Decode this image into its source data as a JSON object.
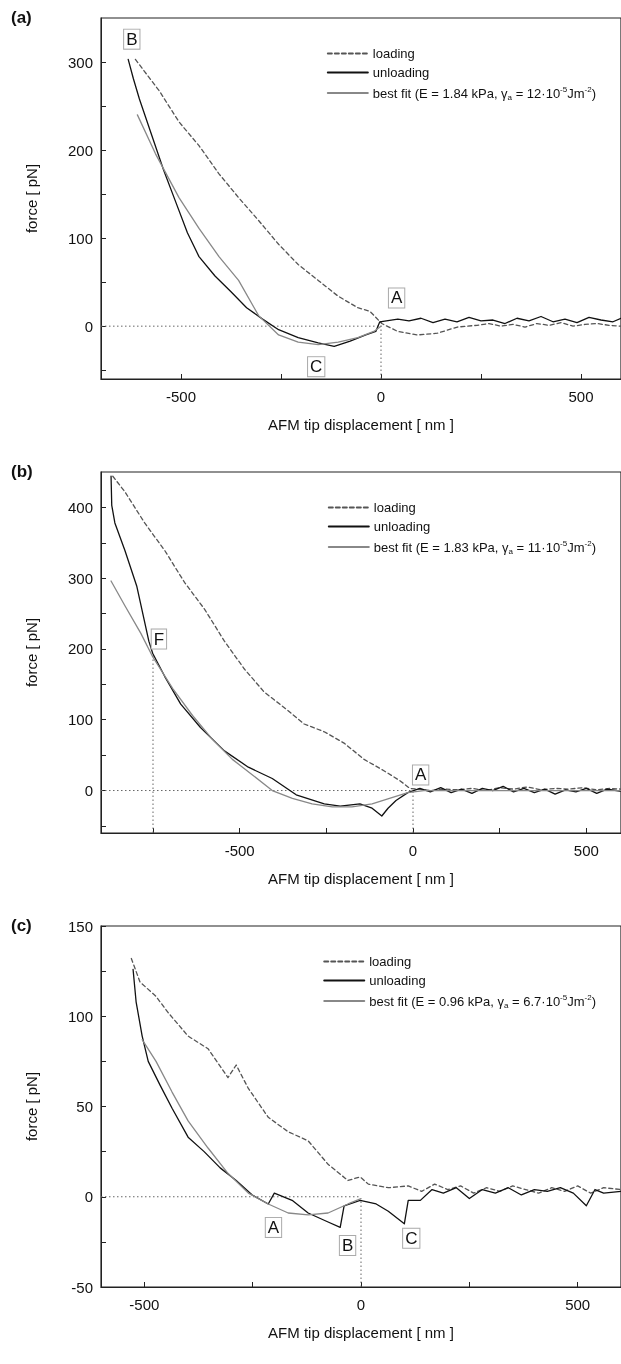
{
  "chart_data": [
    {
      "type": "line",
      "title": "(a)",
      "xlabel": "AFM tip displacement [ nm ]",
      "ylabel": "force [ pN]",
      "xlim": [
        -700,
        600
      ],
      "ylim": [
        -60,
        350
      ],
      "xticks": [
        -500,
        {
          "value": -250,
          "label": null
        },
        0,
        {
          "value": 250,
          "label": null
        },
        500
      ],
      "yticks": [
        {
          "value": -50,
          "label": null
        },
        0,
        {
          "value": 50,
          "label": null
        },
        100,
        {
          "value": 150,
          "label": null
        },
        200,
        {
          "value": 250,
          "label": null
        },
        300
      ],
      "legend": "top right",
      "marker": "none",
      "grid": false,
      "series": [
        {
          "name": "loading",
          "color": "#555555",
          "line_style": "dashed",
          "x": [
            -614,
            -554,
            -505,
            -455,
            -405,
            -356,
            -306,
            -256,
            -207,
            -157,
            -107,
            -58,
            -28,
            2,
            42,
            91,
            141,
            191,
            240,
            270,
            300,
            330,
            360,
            390,
            420,
            450,
            480,
            510,
            540,
            570,
            600
          ],
          "values": [
            303,
            267,
            232,
            205,
            173,
            146,
            120,
            93,
            70,
            52,
            34,
            21,
            17,
            3,
            -6,
            -10,
            -8,
            -1,
            1,
            3,
            0,
            2,
            -1,
            3,
            1,
            4,
            0,
            2,
            3,
            1,
            0
          ]
        },
        {
          "name": "unloading",
          "color": "#111111",
          "x": [
            -632,
            -619,
            -604,
            -574,
            -544,
            -514,
            -484,
            -455,
            -415,
            -375,
            -336,
            -296,
            -256,
            -207,
            -157,
            -117,
            -77,
            -38,
            -13,
            -3,
            42,
            70,
            100,
            130,
            160,
            190,
            220,
            250,
            280,
            310,
            340,
            370,
            400,
            430,
            460,
            490,
            520,
            550,
            580,
            600
          ],
          "values": [
            303,
            281,
            258,
            218,
            178,
            142,
            106,
            79,
            57,
            39,
            21,
            8,
            -4,
            -13,
            -19,
            -23,
            -17,
            -10,
            -6,
            5,
            8,
            6,
            9,
            4,
            8,
            5,
            10,
            6,
            7,
            3,
            9,
            6,
            11,
            5,
            8,
            4,
            10,
            7,
            5,
            9
          ]
        },
        {
          "name": "best fit (E = 1.84 kPa, γ$_{a}$ = 12·10$^{-5}$Jm$^{-2}$)",
          "color": "#888888",
          "x": [
            -609,
            -564,
            -505,
            -455,
            -405,
            -356,
            -306,
            -256,
            -207,
            -157,
            -107,
            -58,
            -18,
            0
          ],
          "values": [
            240,
            196,
            146,
            111,
            79,
            52,
            12,
            -10,
            -18,
            -21,
            -18,
            -13,
            -6,
            0
          ]
        }
      ],
      "ref_lines": [
        {
          "axis": "y",
          "value": 0,
          "color": "#666666",
          "line_style": "dotted"
        },
        {
          "axis": "x",
          "value": 0,
          "color": "#666666",
          "line_style": "dotted"
        }
      ],
      "annotations": [
        {
          "text": "B",
          "x": -623,
          "y": 326
        },
        {
          "text": "A",
          "x": 39,
          "y": 32
        },
        {
          "text": "C",
          "x": -162,
          "y": -46
        }
      ]
    },
    {
      "type": "line",
      "title": "(b)",
      "xlabel": "AFM tip displacement [ nm ]",
      "ylabel": "force [ pN]",
      "xlim": [
        -900,
        600
      ],
      "ylim": [
        -60,
        450
      ],
      "xticks": [
        {
          "value": -750,
          "label": null
        },
        -500,
        {
          "value": -250,
          "label": null
        },
        0,
        {
          "value": 250,
          "label": null
        },
        500
      ],
      "yticks": [
        {
          "value": -50,
          "label": null
        },
        0,
        {
          "value": 50,
          "label": null
        },
        100,
        {
          "value": 150,
          "label": null
        },
        200,
        {
          "value": 250,
          "label": null
        },
        300,
        {
          "value": 350,
          "label": null
        },
        400
      ],
      "legend": "top right",
      "marker": "none",
      "grid": false,
      "series": [
        {
          "name": "loading",
          "color": "#555555",
          "line_style": "dashed",
          "x": [
            -866,
            -831,
            -774,
            -716,
            -659,
            -601,
            -544,
            -487,
            -429,
            -371,
            -314,
            -256,
            -199,
            -141,
            -84,
            -38,
            -9,
            54,
            90,
            130,
            170,
            210,
            250,
            290,
            330,
            370,
            410,
            450,
            490,
            530,
            570,
            600
          ],
          "values": [
            444,
            422,
            378,
            339,
            294,
            256,
            211,
            172,
            139,
            117,
            94,
            83,
            67,
            44,
            28,
            14,
            3,
            0,
            2,
            1,
            3,
            0,
            4,
            2,
            5,
            1,
            3,
            2,
            4,
            1,
            3,
            2
          ]
        },
        {
          "name": "unloading",
          "color": "#111111",
          "x": [
            -871,
            -869,
            -860,
            -831,
            -797,
            -762,
            -751,
            -716,
            -670,
            -613,
            -544,
            -475,
            -406,
            -337,
            -256,
            -210,
            -153,
            -118,
            -90,
            -72,
            -49,
            -15,
            20,
            50,
            80,
            110,
            140,
            170,
            200,
            230,
            260,
            290,
            320,
            350,
            380,
            410,
            440,
            470,
            500,
            530,
            560,
            600
          ],
          "values": [
            444,
            403,
            378,
            339,
            289,
            211,
            194,
            161,
            122,
            89,
            56,
            33,
            17,
            -6,
            -19,
            -22,
            -19,
            -25,
            -36,
            -25,
            -14,
            -3,
            3,
            -2,
            4,
            -3,
            2,
            -4,
            3,
            0,
            6,
            -2,
            3,
            -3,
            2,
            -5,
            1,
            -2,
            3,
            -4,
            2,
            -1
          ]
        },
        {
          "name": "best fit (E = 1.83 kPa, γ$_{a}$ = 11·10$^{-5}$Jm$^{-2}$)",
          "color": "#888888",
          "x": [
            -871,
            -831,
            -785,
            -751,
            -693,
            -636,
            -578,
            -521,
            -463,
            -406,
            -348,
            -291,
            -233,
            -176,
            -118,
            -61,
            -15,
            31,
            600
          ],
          "values": [
            296,
            261,
            222,
            189,
            144,
            106,
            72,
            44,
            22,
            0,
            -11,
            -19,
            -23,
            -23,
            -19,
            -10,
            -3,
            0,
            0
          ]
        }
      ],
      "ref_lines": [
        {
          "axis": "y",
          "value": 0,
          "color": "#666666",
          "line_style": "dotted"
        },
        {
          "axis": "x",
          "value": 0,
          "color": "#666666",
          "line_style": "dotted"
        },
        {
          "axis": "x",
          "value": -750,
          "color": "#666666",
          "line_style": "dotted"
        }
      ],
      "annotations": [
        {
          "text": "F",
          "x": -733,
          "y": 214
        },
        {
          "text": "A",
          "x": 22,
          "y": 22
        }
      ]
    },
    {
      "type": "line",
      "title": "(c)",
      "xlabel": "AFM tip displacement [ nm ]",
      "ylabel": "force [ pN]",
      "xlim": [
        -600,
        600
      ],
      "ylim": [
        -50,
        150
      ],
      "xticks": [
        -500,
        {
          "value": -250,
          "label": null
        },
        0,
        {
          "value": 250,
          "label": null
        },
        500
      ],
      "yticks": [
        -50,
        {
          "value": -25,
          "label": null
        },
        0,
        {
          "value": 25,
          "label": null
        },
        50,
        {
          "value": 75,
          "label": null
        },
        100,
        {
          "value": 125,
          "label": null
        },
        150
      ],
      "legend": "top right",
      "marker": "none",
      "grid": false,
      "series": [
        {
          "name": "loading",
          "color": "#555555",
          "line_style": "dashed",
          "x": [
            -530,
            -510,
            -473,
            -445,
            -399,
            -353,
            -307,
            -288,
            -260,
            -214,
            -168,
            -122,
            -76,
            -30,
            -2,
            17,
            63,
            109,
            140,
            170,
            200,
            230,
            260,
            290,
            320,
            350,
            380,
            410,
            440,
            470,
            500,
            530,
            560,
            600
          ],
          "values": [
            132,
            119,
            111,
            102,
            89,
            82,
            66,
            73,
            60,
            44,
            36,
            31,
            18,
            9,
            11,
            7,
            5,
            6,
            3,
            7,
            4,
            6,
            2,
            5,
            3,
            6,
            4,
            2,
            5,
            3,
            6,
            2,
            5,
            4
          ]
        },
        {
          "name": "unloading",
          "color": "#111111",
          "x": [
            -526,
            -519,
            -505,
            -491,
            -464,
            -436,
            -399,
            -362,
            -325,
            -288,
            -251,
            -214,
            -200,
            -159,
            -122,
            -76,
            -48,
            -39,
            -2,
            35,
            63,
            100,
            109,
            137,
            164,
            190,
            220,
            250,
            280,
            310,
            340,
            370,
            400,
            430,
            460,
            490,
            520,
            540,
            560,
            600
          ],
          "values": [
            126,
            108,
            89,
            75,
            62,
            49,
            33,
            25,
            16,
            9,
            1,
            -4,
            2,
            -2,
            -9,
            -14,
            -17,
            -5,
            -2,
            -4,
            -8,
            -15,
            -2,
            -2,
            4,
            2,
            5,
            -1,
            4,
            2,
            5,
            1,
            4,
            3,
            5,
            2,
            -5,
            4,
            2,
            3
          ]
        },
        {
          "name": "best fit (E = 0.96 kPa, γ$_{a}$ = 6.7·10$^{-5}$Jm$^{-2}$)",
          "color": "#888888",
          "x": [
            -505,
            -473,
            -436,
            -399,
            -353,
            -307,
            -260,
            -214,
            -168,
            -122,
            -76,
            -30,
            0
          ],
          "values": [
            87,
            75,
            58,
            42,
            27,
            13,
            2,
            -4,
            -9,
            -10,
            -9,
            -4,
            -1
          ]
        }
      ],
      "ref_lines": [
        {
          "axis": "y",
          "value": 0,
          "color": "#666666",
          "line_style": "dotted"
        },
        {
          "axis": "x",
          "value": 0,
          "color": "#666666",
          "line_style": "dotted"
        }
      ],
      "annotations": [
        {
          "text": "A",
          "x": -202,
          "y": -17
        },
        {
          "text": "B",
          "x": -31,
          "y": -27
        },
        {
          "text": "C",
          "x": 116,
          "y": -23
        }
      ]
    }
  ]
}
